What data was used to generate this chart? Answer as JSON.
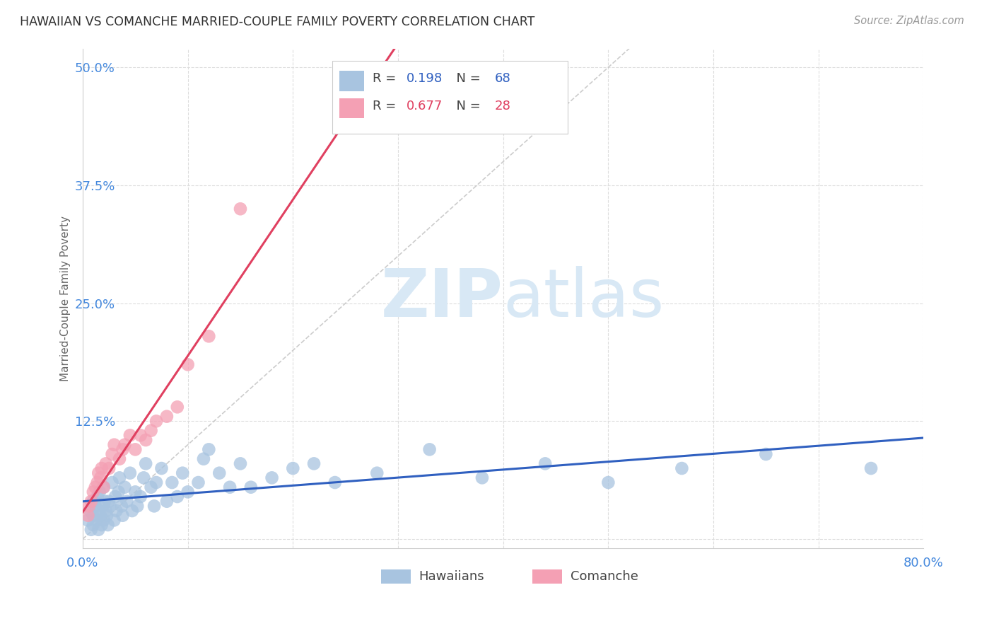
{
  "title": "HAWAIIAN VS COMANCHE MARRIED-COUPLE FAMILY POVERTY CORRELATION CHART",
  "source": "Source: ZipAtlas.com",
  "ylabel": "Married-Couple Family Poverty",
  "xlim": [
    0,
    0.8
  ],
  "ylim": [
    -0.01,
    0.52
  ],
  "yticks": [
    0.0,
    0.125,
    0.25,
    0.375,
    0.5
  ],
  "ytick_labels": [
    "",
    "12.5%",
    "25.0%",
    "37.5%",
    "50.0%"
  ],
  "xticks": [
    0.0,
    0.1,
    0.2,
    0.3,
    0.4,
    0.5,
    0.6,
    0.7,
    0.8
  ],
  "xtick_labels": [
    "0.0%",
    "",
    "",
    "",
    "",
    "",
    "",
    "",
    "80.0%"
  ],
  "hawaiians_R": 0.198,
  "hawaiians_N": 68,
  "comanche_R": 0.677,
  "comanche_N": 28,
  "hawaiians_color": "#a8c4e0",
  "comanche_color": "#f4a0b4",
  "hawaiians_line_color": "#3060c0",
  "comanche_line_color": "#e04060",
  "diagonal_color": "#c0c0c0",
  "background_color": "#ffffff",
  "grid_color": "#dddddd",
  "title_color": "#303030",
  "axis_label_color": "#666666",
  "tick_label_color": "#4488dd",
  "watermark_color": "#d8e8f5",
  "hawaiians_x": [
    0.005,
    0.007,
    0.008,
    0.01,
    0.01,
    0.01,
    0.012,
    0.013,
    0.014,
    0.015,
    0.015,
    0.016,
    0.017,
    0.018,
    0.019,
    0.02,
    0.02,
    0.021,
    0.022,
    0.023,
    0.024,
    0.025,
    0.026,
    0.028,
    0.03,
    0.031,
    0.032,
    0.034,
    0.035,
    0.037,
    0.038,
    0.04,
    0.042,
    0.045,
    0.047,
    0.05,
    0.052,
    0.055,
    0.058,
    0.06,
    0.065,
    0.068,
    0.07,
    0.075,
    0.08,
    0.085,
    0.09,
    0.095,
    0.1,
    0.11,
    0.115,
    0.12,
    0.13,
    0.14,
    0.15,
    0.16,
    0.18,
    0.2,
    0.22,
    0.24,
    0.28,
    0.33,
    0.38,
    0.44,
    0.5,
    0.57,
    0.65,
    0.75
  ],
  "hawaiians_y": [
    0.02,
    0.03,
    0.01,
    0.04,
    0.025,
    0.015,
    0.035,
    0.02,
    0.045,
    0.03,
    0.01,
    0.05,
    0.025,
    0.015,
    0.035,
    0.055,
    0.02,
    0.04,
    0.03,
    0.025,
    0.015,
    0.04,
    0.035,
    0.06,
    0.02,
    0.045,
    0.03,
    0.05,
    0.065,
    0.035,
    0.025,
    0.055,
    0.04,
    0.07,
    0.03,
    0.05,
    0.035,
    0.045,
    0.065,
    0.08,
    0.055,
    0.035,
    0.06,
    0.075,
    0.04,
    0.06,
    0.045,
    0.07,
    0.05,
    0.06,
    0.085,
    0.095,
    0.07,
    0.055,
    0.08,
    0.055,
    0.065,
    0.075,
    0.08,
    0.06,
    0.07,
    0.095,
    0.065,
    0.08,
    0.06,
    0.075,
    0.09,
    0.075
  ],
  "comanche_x": [
    0.005,
    0.006,
    0.008,
    0.01,
    0.012,
    0.014,
    0.015,
    0.017,
    0.018,
    0.02,
    0.022,
    0.025,
    0.028,
    0.03,
    0.035,
    0.038,
    0.04,
    0.045,
    0.05,
    0.055,
    0.06,
    0.065,
    0.07,
    0.08,
    0.09,
    0.1,
    0.12,
    0.15
  ],
  "comanche_y": [
    0.025,
    0.035,
    0.04,
    0.05,
    0.055,
    0.06,
    0.07,
    0.065,
    0.075,
    0.055,
    0.08,
    0.075,
    0.09,
    0.1,
    0.085,
    0.095,
    0.1,
    0.11,
    0.095,
    0.11,
    0.105,
    0.115,
    0.125,
    0.13,
    0.14,
    0.185,
    0.215,
    0.35
  ]
}
